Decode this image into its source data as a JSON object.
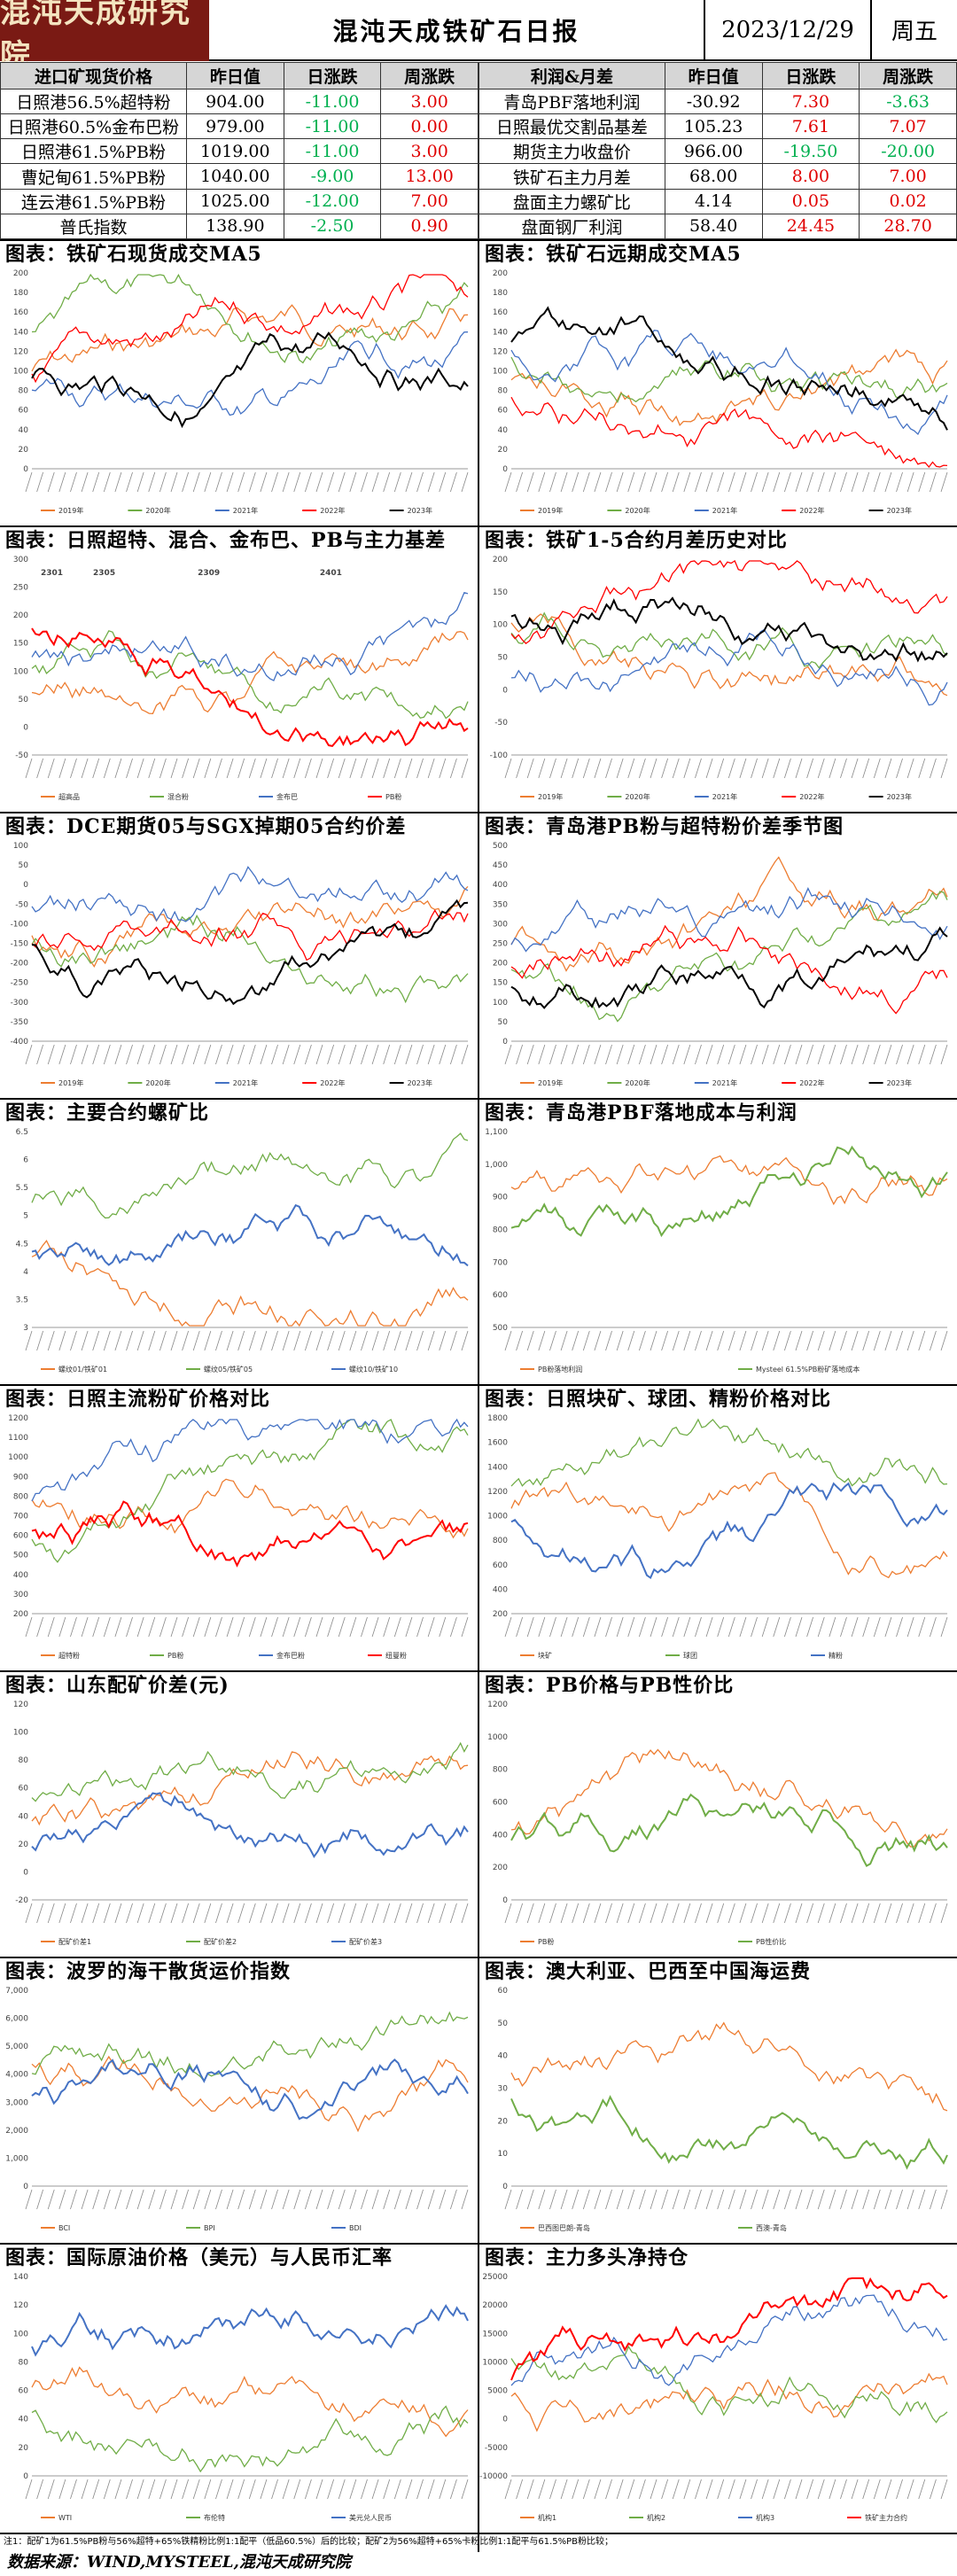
{
  "header": {
    "logo_text": "混沌天成研究院",
    "title": "混沌天成铁矿石日报",
    "date": "2023/12/29",
    "weekday": "周五"
  },
  "left_table": {
    "headers": [
      "进口矿现货价格",
      "昨日值",
      "日涨跌",
      "周涨跌"
    ],
    "rows": [
      {
        "name": "日照港56.5%超特粉",
        "value": "904.00",
        "day": "-11.00",
        "week": "3.00"
      },
      {
        "name": "日照港60.5%金布巴粉",
        "value": "979.00",
        "day": "-11.00",
        "week": "0.00"
      },
      {
        "name": "日照港61.5%PB粉",
        "value": "1019.00",
        "day": "-11.00",
        "week": "3.00"
      },
      {
        "name": "曹妃甸61.5%PB粉",
        "value": "1040.00",
        "day": "-9.00",
        "week": "13.00"
      },
      {
        "name": "连云港61.5%PB粉",
        "value": "1025.00",
        "day": "-12.00",
        "week": "7.00"
      },
      {
        "name": "普氏指数",
        "value": "138.90",
        "day": "-2.50",
        "week": "0.90"
      }
    ]
  },
  "right_table": {
    "headers": [
      "利润&月差",
      "昨日值",
      "日涨跌",
      "周涨跌"
    ],
    "rows": [
      {
        "name": "青岛PBF落地利润",
        "value": "-30.92",
        "day": "7.30",
        "week": "-3.63"
      },
      {
        "name": "日照最优交割品基差",
        "value": "105.23",
        "day": "7.61",
        "week": "7.07"
      },
      {
        "name": "期货主力收盘价",
        "value": "966.00",
        "day": "-19.50",
        "week": "-20.00"
      },
      {
        "name": "铁矿石主力月差",
        "value": "68.00",
        "day": "8.00",
        "week": "7.00"
      },
      {
        "name": "盘面主力螺矿比",
        "value": "4.14",
        "day": "0.05",
        "week": "0.02"
      },
      {
        "name": "盘面钢厂利润",
        "value": "58.40",
        "day": "24.45",
        "week": "28.70"
      }
    ]
  },
  "panels": [
    {
      "title": "图表：铁矿石现货成交MA5",
      "legend": [
        "2019年",
        "2020年",
        "2021年",
        "2022年",
        "2023年"
      ],
      "yticks": [
        "200",
        "180",
        "160",
        "140",
        "120",
        "100",
        "80",
        "60",
        "40",
        "20",
        "0"
      ]
    },
    {
      "title": "图表：铁矿石远期成交MA5",
      "legend": [
        "2019年",
        "2020年",
        "2021年",
        "2022年",
        "2023年"
      ],
      "yticks": [
        "200",
        "180",
        "160",
        "140",
        "120",
        "100",
        "80",
        "60",
        "40",
        "20",
        "0"
      ]
    },
    {
      "title": "图表：日照超特、混合、金布巴、PB与主力基差",
      "legend": [
        "超高品",
        "混合粉",
        "金布巴",
        "PB粉"
      ],
      "yticks": [
        "300",
        "250",
        "200",
        "150",
        "100",
        "50",
        "0",
        "-50"
      ],
      "annotations": [
        "2301",
        "2305",
        "2309",
        "2401"
      ]
    },
    {
      "title": "图表：铁矿1-5合约月差历史对比",
      "legend": [
        "2019年",
        "2020年",
        "2021年",
        "2022年",
        "2023年"
      ],
      "yticks": [
        "200",
        "150",
        "100",
        "50",
        "0",
        "-50",
        "-100"
      ]
    },
    {
      "title": "图表：DCE期货05与SGX掉期05合约价差",
      "legend": [
        "2019年",
        "2020年",
        "2021年",
        "2022年",
        "2023年"
      ],
      "yticks": [
        "100",
        "50",
        "0",
        "-50",
        "-100",
        "-150",
        "-200",
        "-250",
        "-300",
        "-350",
        "-400"
      ]
    },
    {
      "title": "图表：青岛港PB粉与超特粉价差季节图",
      "legend": [
        "2019年",
        "2020年",
        "2021年",
        "2022年",
        "2023年"
      ],
      "yticks": [
        "500",
        "450",
        "400",
        "350",
        "300",
        "250",
        "200",
        "150",
        "100",
        "50",
        "0"
      ]
    },
    {
      "title": "图表：主要合约螺矿比",
      "legend": [
        "螺纹01/铁矿01",
        "螺纹05/铁矿05",
        "螺纹10/铁矿10"
      ],
      "yticks": [
        "6.5",
        "6",
        "5.5",
        "5",
        "4.5",
        "4",
        "3.5",
        "3"
      ]
    },
    {
      "title": "图表：青岛港PBF落地成本与利润",
      "legend": [
        "PB粉落地利润",
        "Mysteel 61.5%PB粉矿落地成本"
      ],
      "yticks": [
        "1,100",
        "1,000",
        "900",
        "800",
        "700",
        "600",
        "500"
      ]
    },
    {
      "title": "图表：日照主流粉矿价格对比",
      "legend": [
        "超特粉",
        "PB粉",
        "金布巴粉",
        "纽曼粉"
      ],
      "yticks": [
        "1200",
        "1100",
        "1000",
        "900",
        "800",
        "700",
        "600",
        "500",
        "400",
        "300",
        "200"
      ]
    },
    {
      "title": "图表：日照块矿、球团、精粉价格对比",
      "legend": [
        "块矿",
        "球团",
        "精粉"
      ],
      "yticks": [
        "1800",
        "1600",
        "1400",
        "1200",
        "1000",
        "800",
        "600",
        "400",
        "200"
      ]
    },
    {
      "title": "图表：山东配矿价差(元)",
      "legend": [
        "配矿价差1",
        "配矿价差2",
        "配矿价差3"
      ],
      "yticks": [
        "120",
        "100",
        "80",
        "60",
        "40",
        "20",
        "0",
        "-20"
      ]
    },
    {
      "title": "图表：PB价格与PB性价比",
      "legend": [
        "PB粉",
        "PB性价比"
      ],
      "yticks": [
        "1200",
        "1000",
        "800",
        "600",
        "400",
        "200",
        "0"
      ]
    },
    {
      "title": "图表：波罗的海干散货运价指数",
      "legend": [
        "BCI",
        "BPI",
        "BDI"
      ],
      "yticks": [
        "7,000",
        "6,000",
        "5,000",
        "4,000",
        "3,000",
        "2,000",
        "1,000",
        "0"
      ]
    },
    {
      "title": "图表：澳大利亚、巴西至中国海运费",
      "legend": [
        "巴西图巴朗-青岛",
        "西澳-青岛"
      ],
      "yticks": [
        "60",
        "50",
        "40",
        "30",
        "20",
        "10",
        "0"
      ]
    },
    {
      "title": "图表：国际原油价格（美元）与人民币汇率",
      "legend": [
        "WTI",
        "布伦特",
        "美元兑人民币"
      ],
      "yticks": [
        "140",
        "120",
        "100",
        "80",
        "60",
        "40",
        "20",
        "0"
      ]
    },
    {
      "title": "图表：主力多头净持仓",
      "legend": [
        "机构1",
        "机构2",
        "机构3",
        "铁矿主力合约"
      ],
      "yticks": [
        "25000",
        "20000",
        "15000",
        "10000",
        "5000",
        "0",
        "-5000",
        "-10000"
      ]
    }
  ],
  "footnote": "注1：配矿1为61.5%PB粉与56%超特+65%铁精粉比例1:1配平（低品60.5%）后的比较；配矿2为56%超特+65%卡粉比例1:1配平与61.5%PB粉比较；",
  "source": "数据来源：WIND,MYSTEEL,混沌天成研究院",
  "colors": {
    "accent": "#7a1a14",
    "up": "#e00000",
    "down": "#00b050",
    "s2019": "#ed7d31",
    "s2020": "#70ad47",
    "s2021": "#4472c4",
    "s2022": "#ff0000",
    "s2023": "#000000"
  }
}
